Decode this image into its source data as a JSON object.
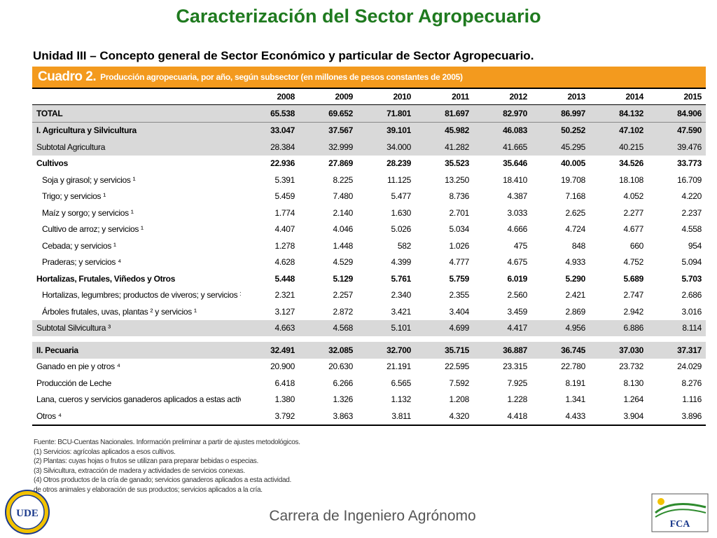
{
  "slide": {
    "title": "Caracterización del Sector Agropecuario",
    "subtitle": "Unidad III – Concepto general de Sector Económico y particular de Sector Agropecuario.",
    "footer": "Carrera de Ingeniero Agrónomo"
  },
  "cuadro": {
    "number": "Cuadro 2.",
    "description": "Producción agropecuaria, por año, según subsector (en millones de pesos constantes de 2005)",
    "years": [
      "2008",
      "2009",
      "2010",
      "2011",
      "2012",
      "2013",
      "2014",
      "2015"
    ],
    "rows": [
      {
        "label": "TOTAL",
        "values": [
          "65.538",
          "69.652",
          "71.801",
          "81.697",
          "82.970",
          "86.997",
          "84.132",
          "84.906"
        ],
        "style": "shade bold total"
      },
      {
        "label": "I. Agricultura y Silvicultura",
        "values": [
          "33.047",
          "37.567",
          "39.101",
          "45.982",
          "46.083",
          "50.252",
          "47.102",
          "47.590"
        ],
        "style": "shade bold"
      },
      {
        "label": "Subtotal Agricultura",
        "values": [
          "28.384",
          "32.999",
          "34.000",
          "41.282",
          "41.665",
          "45.295",
          "40.215",
          "39.476"
        ],
        "style": "shade"
      },
      {
        "label": "Cultivos",
        "values": [
          "22.936",
          "27.869",
          "28.239",
          "35.523",
          "35.646",
          "40.005",
          "34.526",
          "33.773"
        ],
        "style": "bold"
      },
      {
        "label": "Soja y girasol; y servicios ¹",
        "values": [
          "5.391",
          "8.225",
          "11.125",
          "13.250",
          "18.410",
          "19.708",
          "18.108",
          "16.709"
        ],
        "style": "indent"
      },
      {
        "label": "Trigo; y servicios ¹",
        "values": [
          "5.459",
          "7.480",
          "5.477",
          "8.736",
          "4.387",
          "7.168",
          "4.052",
          "4.220"
        ],
        "style": "indent"
      },
      {
        "label": "Maíz y sorgo; y servicios ¹",
        "values": [
          "1.774",
          "2.140",
          "1.630",
          "2.701",
          "3.033",
          "2.625",
          "2.277",
          "2.237"
        ],
        "style": "indent"
      },
      {
        "label": "Cultivo de arroz; y servicios ¹",
        "values": [
          "4.407",
          "4.046",
          "5.026",
          "5.034",
          "4.666",
          "4.724",
          "4.677",
          "4.558"
        ],
        "style": "indent"
      },
      {
        "label": "Cebada; y servicios ¹",
        "values": [
          "1.278",
          "1.448",
          "582",
          "1.026",
          "475",
          "848",
          "660",
          "954"
        ],
        "style": "indent"
      },
      {
        "label": "Praderas; y servicios ⁴",
        "values": [
          "4.628",
          "4.529",
          "4.399",
          "4.777",
          "4.675",
          "4.933",
          "4.752",
          "5.094"
        ],
        "style": "indent"
      },
      {
        "label": "Hortalizas, Frutales, Viñedos y Otros",
        "values": [
          "5.448",
          "5.129",
          "5.761",
          "5.759",
          "6.019",
          "5.290",
          "5.689",
          "5.703"
        ],
        "style": "bold"
      },
      {
        "label": "Hortalizas, legumbres; productos de viveros; y servicios ¹",
        "values": [
          "2.321",
          "2.257",
          "2.340",
          "2.355",
          "2.560",
          "2.421",
          "2.747",
          "2.686"
        ],
        "style": "indent"
      },
      {
        "label": "Árboles frutales, uvas, plantas ² y servicios ¹",
        "values": [
          "3.127",
          "2.872",
          "3.421",
          "3.404",
          "3.459",
          "2.869",
          "2.942",
          "3.016"
        ],
        "style": "indent"
      },
      {
        "label": "Subtotal Silvicultura ³",
        "values": [
          "4.663",
          "4.568",
          "5.101",
          "4.699",
          "4.417",
          "4.956",
          "6.886",
          "8.114"
        ],
        "style": "shade"
      },
      {
        "label": "",
        "values": [
          "",
          "",
          "",
          "",
          "",
          "",
          "",
          ""
        ],
        "style": "spacer"
      },
      {
        "label": "II. Pecuaria",
        "values": [
          "32.491",
          "32.085",
          "32.700",
          "35.715",
          "36.887",
          "36.745",
          "37.030",
          "37.317"
        ],
        "style": "shade bold"
      },
      {
        "label": "Ganado en pie y otros ⁴",
        "values": [
          "20.900",
          "20.630",
          "21.191",
          "22.595",
          "23.315",
          "22.780",
          "23.732",
          "24.029"
        ],
        "style": ""
      },
      {
        "label": "Producción de Leche",
        "values": [
          "6.418",
          "6.266",
          "6.565",
          "7.592",
          "7.925",
          "8.191",
          "8.130",
          "8.276"
        ],
        "style": ""
      },
      {
        "label": "Lana, cueros y servicios ganaderos aplicados a estas actividades",
        "values": [
          "1.380",
          "1.326",
          "1.132",
          "1.208",
          "1.228",
          "1.341",
          "1.264",
          "1.116"
        ],
        "style": ""
      },
      {
        "label": "Otros ⁴",
        "values": [
          "3.792",
          "3.863",
          "3.811",
          "4.320",
          "4.418",
          "4.433",
          "3.904",
          "3.896"
        ],
        "style": "last"
      }
    ],
    "notes": [
      "Fuente: BCU-Cuentas Nacionales. Información preliminar a partir de ajustes metodológicos.",
      "(1) Servicios: agrícolas aplicados a esos cultivos.",
      "(2) Plantas: cuyas hojas o frutos se utilizan para preparar bebidas o especias.",
      "(3) Silvicultura, extracción de madera y actividades de servicios conexas.",
      "(4) Otros productos de la cría de ganado; servicios ganaderos aplicados a esta actividad.",
      "     de otros animales y elaboración de sus productos; servicios aplicados a la cría."
    ]
  },
  "logos": {
    "left": "UDE",
    "right": "FCA"
  },
  "colors": {
    "title_green": "#1f7a1f",
    "header_orange": "#f39a1e",
    "row_shade": "#d9d9d9"
  }
}
